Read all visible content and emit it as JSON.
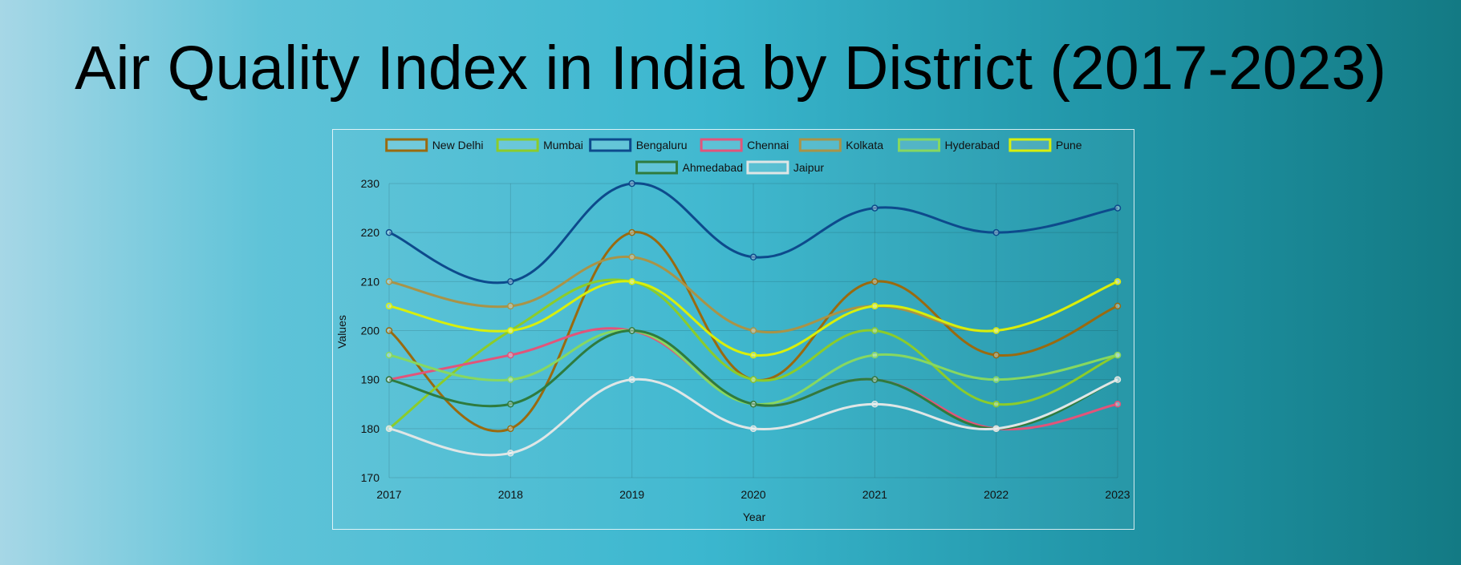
{
  "page": {
    "title": "Air Quality Index in India by District (2017-2023)"
  },
  "chart_data": {
    "type": "line",
    "title": "",
    "xlabel": "Year",
    "ylabel": "Values",
    "ylim": [
      170,
      230
    ],
    "yticks": [
      170,
      180,
      190,
      200,
      210,
      220,
      230
    ],
    "x": [
      "2017",
      "2018",
      "2019",
      "2020",
      "2021",
      "2022",
      "2023"
    ],
    "grid": true,
    "legend_position": "top-center",
    "series": [
      {
        "name": "New Delhi",
        "color": "#9a6a0f",
        "values": [
          200,
          180,
          220,
          190,
          210,
          195,
          205
        ]
      },
      {
        "name": "Mumbai",
        "color": "#8ccc2a",
        "values": [
          180,
          200,
          210,
          190,
          200,
          185,
          195
        ]
      },
      {
        "name": "Bengaluru",
        "color": "#0d4a8c",
        "values": [
          220,
          210,
          230,
          215,
          225,
          220,
          225
        ]
      },
      {
        "name": "Chennai",
        "color": "#e2547a",
        "values": [
          190,
          195,
          200,
          185,
          190,
          180,
          185
        ]
      },
      {
        "name": "Kolkata",
        "color": "#a99347",
        "values": [
          210,
          205,
          215,
          200,
          205,
          200,
          210
        ]
      },
      {
        "name": "Hyderabad",
        "color": "#87d860",
        "values": [
          195,
          190,
          200,
          185,
          195,
          190,
          195
        ]
      },
      {
        "name": "Pune",
        "color": "#d8ef0c",
        "values": [
          205,
          200,
          210,
          195,
          205,
          200,
          210
        ]
      },
      {
        "name": "Ahmedabad",
        "color": "#2e7b3e",
        "values": [
          190,
          185,
          200,
          185,
          190,
          180,
          190
        ]
      },
      {
        "name": "Jaipur",
        "color": "#dfe6e6",
        "values": [
          180,
          175,
          190,
          180,
          185,
          180,
          190
        ]
      }
    ]
  }
}
